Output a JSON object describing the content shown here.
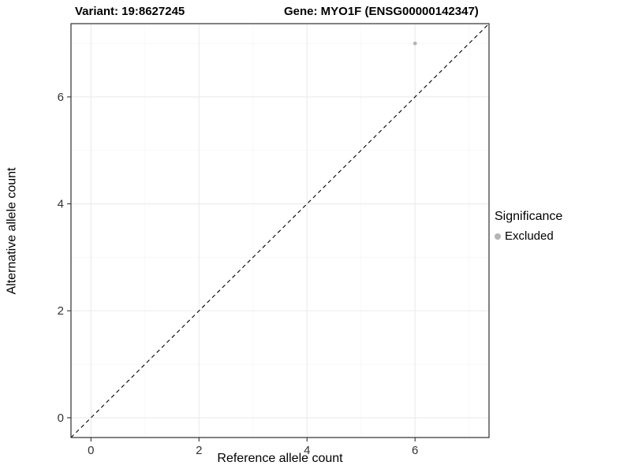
{
  "chart_data": {
    "type": "scatter",
    "title_left": "Variant: 19:8627245",
    "title_right": "Gene: MYO1F (ENSG00000142347)",
    "xlabel": "Reference allele count",
    "ylabel": "Alternative allele count",
    "xlim": [
      -0.37,
      7.37
    ],
    "ylim": [
      -0.37,
      7.37
    ],
    "x_major_ticks": [
      0,
      2,
      4,
      6
    ],
    "x_minor_ticks": [
      1,
      3,
      5,
      7
    ],
    "y_major_ticks": [
      0,
      2,
      4,
      6
    ],
    "y_minor_ticks": [
      1,
      3,
      5,
      7
    ],
    "grid": "major+minor",
    "reference_line": {
      "type": "identity y=x",
      "style": "dashed",
      "color": "#000000"
    },
    "series": [
      {
        "name": "Excluded",
        "color": "#b4b4b4",
        "points": [
          {
            "x": 6,
            "y": 7
          }
        ]
      }
    ],
    "legend": {
      "title": "Significance",
      "position": "right",
      "entries": [
        {
          "label": "Excluded",
          "color": "#b4b4b4"
        }
      ]
    },
    "colors": {
      "panel_bg": "#ffffff",
      "grid_major": "#ebebeb",
      "grid_minor": "#f6f6f6",
      "panel_border": "#2f2f2f",
      "tick": "#333333"
    }
  }
}
